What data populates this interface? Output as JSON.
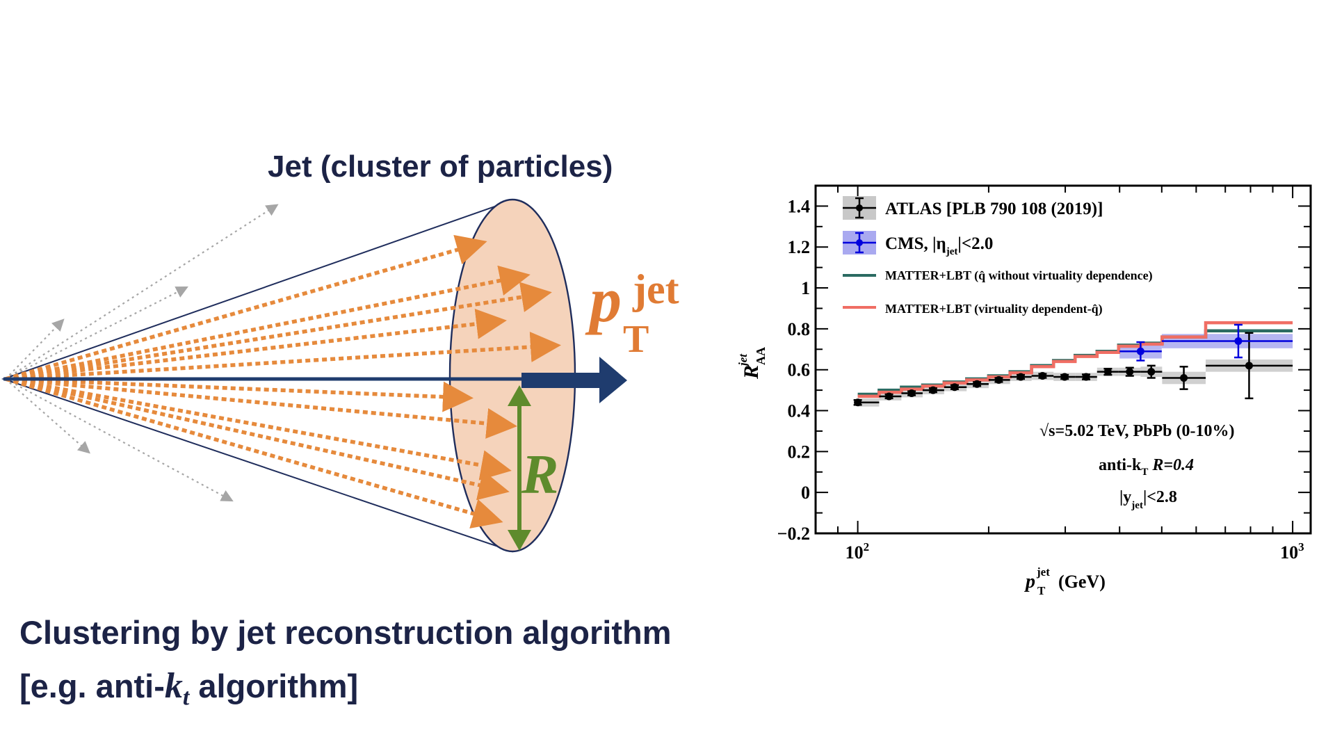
{
  "diagram": {
    "title": "Jet (cluster of particles)",
    "caption_line1": "Clustering by jet reconstruction algorithm",
    "caption_line2_prefix": "[e.g. anti-",
    "caption_line2_k": "k",
    "caption_line2_t": "t",
    "caption_line2_suffix": " algorithm]",
    "pt_label_p": "p",
    "pt_label_sup": "jet",
    "pt_label_sub": "T",
    "radius_label": "R",
    "colors": {
      "cone_fill": "#f5d3bb",
      "cone_edge": "#1f2d5c",
      "arrow": "#1f3c6e",
      "particles": "#e68a3c",
      "radius": "#5e8b2c",
      "stray": "#a6a6a6"
    }
  },
  "chart_data": {
    "type": "line",
    "xscale": "log",
    "xlim": [
      80,
      1100
    ],
    "ylim": [
      -0.2,
      1.5
    ],
    "yticks": [
      "1.4",
      "1.2",
      "1",
      "0.8",
      "0.6",
      "0.4",
      "0.2",
      "0",
      "−0.2"
    ],
    "ytick_values": [
      1.4,
      1.2,
      1.0,
      0.8,
      0.6,
      0.4,
      0.2,
      0,
      -0.2
    ],
    "xtick_base": "10",
    "xtick_exps": [
      "2",
      "3"
    ],
    "xtick_values": [
      100,
      1000
    ],
    "xlabel_main": "p",
    "xlabel_sup": "jet",
    "xlabel_sub": "T",
    "xlabel_unit": " (GeV)",
    "ylabel_main": "R",
    "ylabel_sup": "jet",
    "ylabel_sub": "AA",
    "legend": {
      "atlas": "ATLAS [PLB 790 108 (2019)]",
      "cms_prefix": "CMS, |η",
      "cms_sub": "jet",
      "cms_suffix": "|<2.0",
      "model1": "MATTER+LBT (q̂ without virtuality dependence)",
      "model2": "MATTER+LBT (virtuality dependent-q̂)"
    },
    "annotations": {
      "energy": "√s=5.02 TeV, PbPb (0-10%)",
      "algo": "anti-k",
      "algo_sub": "T",
      "algo_r": "  R=0.4",
      "rap_prefix": "|y",
      "rap_sub": "jet",
      "rap_suffix": "|<2.8"
    },
    "series": [
      {
        "name": "ATLAS [PLB 790 108 (2019)]",
        "color": "#000000",
        "band_color": "#c8c8c8",
        "points": [
          {
            "x": 100,
            "xlo": 100,
            "xhi": 112,
            "y": 0.44,
            "err": 0.012,
            "sys": 0.02
          },
          {
            "x": 118,
            "xlo": 112,
            "xhi": 126,
            "y": 0.47,
            "err": 0.01,
            "sys": 0.02
          },
          {
            "x": 133,
            "xlo": 126,
            "xhi": 141,
            "y": 0.485,
            "err": 0.01,
            "sys": 0.02
          },
          {
            "x": 149,
            "xlo": 141,
            "xhi": 158,
            "y": 0.5,
            "err": 0.01,
            "sys": 0.02
          },
          {
            "x": 167,
            "xlo": 158,
            "xhi": 178,
            "y": 0.515,
            "err": 0.01,
            "sys": 0.02
          },
          {
            "x": 188,
            "xlo": 178,
            "xhi": 200,
            "y": 0.53,
            "err": 0.01,
            "sys": 0.02
          },
          {
            "x": 211,
            "xlo": 200,
            "xhi": 224,
            "y": 0.55,
            "err": 0.01,
            "sys": 0.02
          },
          {
            "x": 237,
            "xlo": 224,
            "xhi": 251,
            "y": 0.565,
            "err": 0.01,
            "sys": 0.02
          },
          {
            "x": 266,
            "xlo": 251,
            "xhi": 282,
            "y": 0.57,
            "err": 0.01,
            "sys": 0.02
          },
          {
            "x": 299,
            "xlo": 282,
            "xhi": 316,
            "y": 0.565,
            "err": 0.01,
            "sys": 0.02
          },
          {
            "x": 335,
            "xlo": 316,
            "xhi": 355,
            "y": 0.565,
            "err": 0.012,
            "sys": 0.02
          },
          {
            "x": 376,
            "xlo": 355,
            "xhi": 398,
            "y": 0.59,
            "err": 0.015,
            "sys": 0.02
          },
          {
            "x": 422,
            "xlo": 398,
            "xhi": 447,
            "y": 0.59,
            "err": 0.02,
            "sys": 0.02
          },
          {
            "x": 473,
            "xlo": 447,
            "xhi": 501,
            "y": 0.59,
            "err": 0.03,
            "sys": 0.025
          },
          {
            "x": 562,
            "xlo": 501,
            "xhi": 631,
            "y": 0.56,
            "err": 0.055,
            "sys": 0.03
          },
          {
            "x": 794,
            "xlo": 631,
            "xhi": 1000,
            "y": 0.62,
            "err": 0.16,
            "sys": 0.03
          }
        ]
      },
      {
        "name": "CMS, |ηjet|<2.0",
        "color": "#0000dd",
        "band_color": "#a9a9f0",
        "points": [
          {
            "x": 447,
            "xlo": 400,
            "xhi": 500,
            "y": 0.69,
            "err": 0.045,
            "sys": 0.035
          },
          {
            "x": 750,
            "xlo": 500,
            "xhi": 1000,
            "y": 0.74,
            "err": 0.08,
            "sys": 0.035
          }
        ]
      },
      {
        "name": "MATTER+LBT (q̂ without virtuality dependence)",
        "color": "#2b6b62",
        "edges": [
          100,
          112,
          126,
          141,
          158,
          178,
          200,
          224,
          251,
          282,
          316,
          355,
          398,
          447,
          501,
          631,
          1000
        ],
        "values": [
          0.48,
          0.5,
          0.515,
          0.525,
          0.54,
          0.555,
          0.57,
          0.59,
          0.62,
          0.645,
          0.67,
          0.69,
          0.72,
          0.73,
          0.76,
          0.79
        ]
      },
      {
        "name": "MATTER+LBT (virtuality dependent-q̂)",
        "color": "#f06e64",
        "edges": [
          100,
          112,
          126,
          141,
          158,
          178,
          200,
          224,
          251,
          282,
          316,
          355,
          398,
          447,
          501,
          631,
          1000
        ],
        "values": [
          0.47,
          0.49,
          0.505,
          0.52,
          0.535,
          0.55,
          0.565,
          0.585,
          0.615,
          0.64,
          0.665,
          0.685,
          0.715,
          0.725,
          0.76,
          0.83
        ]
      }
    ]
  }
}
